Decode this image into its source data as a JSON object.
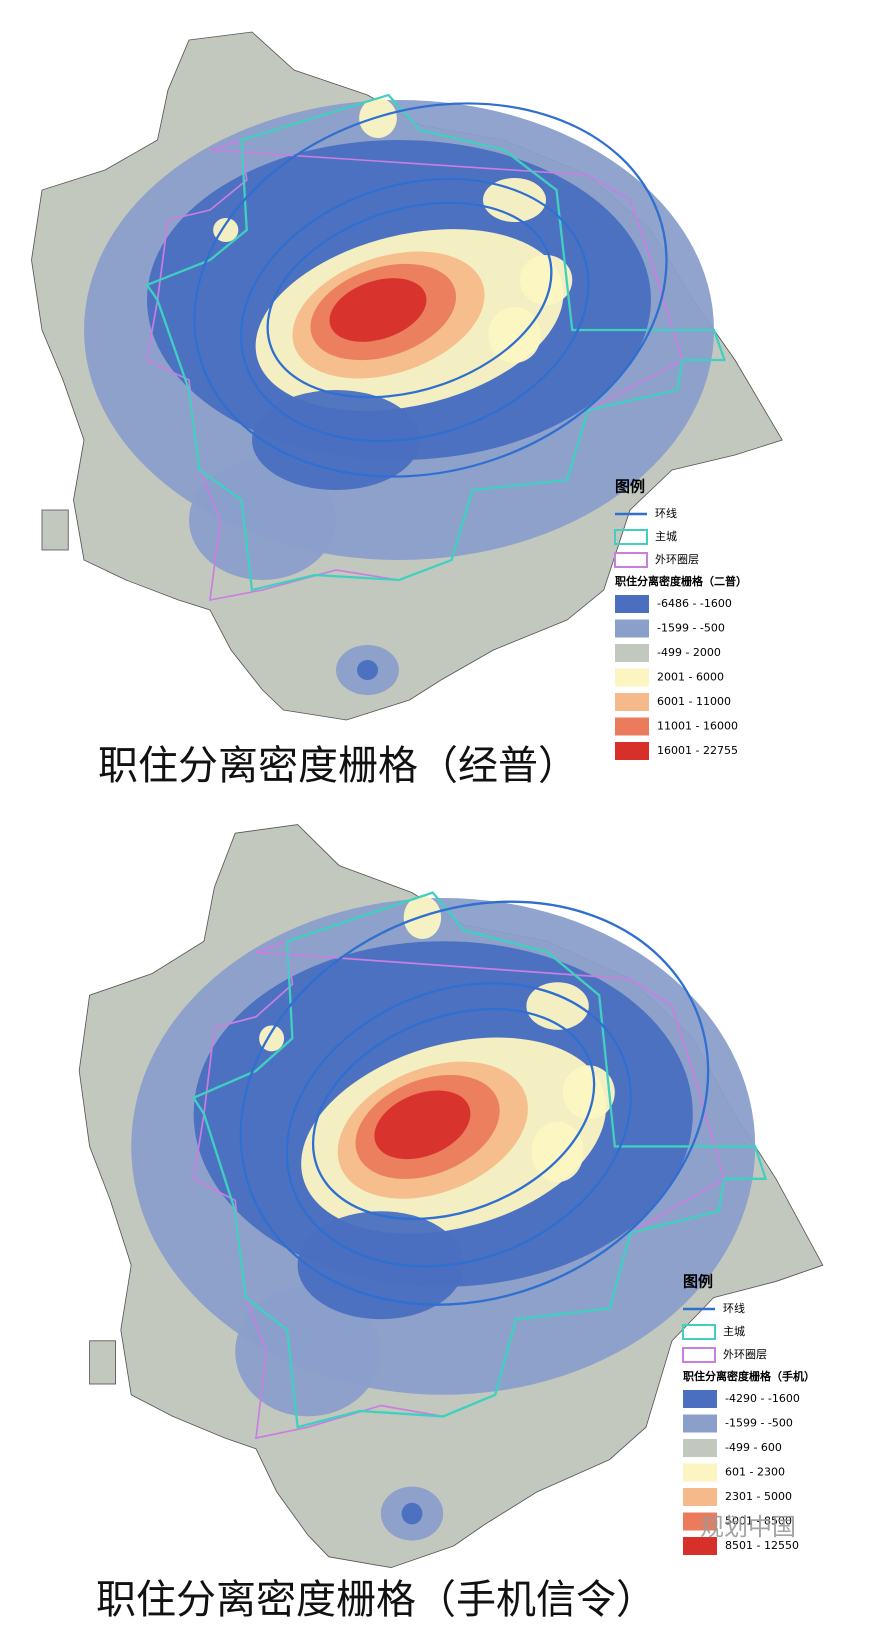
{
  "maps": [
    {
      "legend": {
        "title": "图例",
        "ring_road": "环线",
        "main_city": "主城",
        "outer_ring": "外环圈层",
        "raster_title": "职住分离密度栅格（二普）",
        "classes": [
          {
            "label": "-6486 - -1600",
            "color": "#4a6fc0"
          },
          {
            "label": "-1599 - -500",
            "color": "#8b9fcb"
          },
          {
            "label": "-499 - 2000",
            "color": "#c3c8bf"
          },
          {
            "label": "2001 - 6000",
            "color": "#fcf5c2"
          },
          {
            "label": "6001 - 11000",
            "color": "#f6b98a"
          },
          {
            "label": "11001 - 16000",
            "color": "#eb7b5c"
          },
          {
            "label": "16001 - 22755",
            "color": "#d7302a"
          }
        ]
      },
      "caption": "职住分离密度栅格（经普）"
    },
    {
      "legend": {
        "title": "图例",
        "ring_road": "环线",
        "main_city": "主城",
        "outer_ring": "外环圈层",
        "raster_title": "职住分离密度栅格（手机）",
        "classes": [
          {
            "label": "-4290 - -1600",
            "color": "#4a6fc0"
          },
          {
            "label": "-1599 - -500",
            "color": "#8b9fcb"
          },
          {
            "label": "-499 - 600",
            "color": "#c3c8bf"
          },
          {
            "label": "601 - 2300",
            "color": "#fcf5c2"
          },
          {
            "label": "2301 - 5000",
            "color": "#f6b98a"
          },
          {
            "label": "5001 - 8500",
            "color": "#eb7b5c"
          },
          {
            "label": "8501 - 12550",
            "color": "#d7302a"
          }
        ]
      },
      "caption": "职住分离密度栅格（手机信令）"
    }
  ],
  "watermark": "规划中国"
}
